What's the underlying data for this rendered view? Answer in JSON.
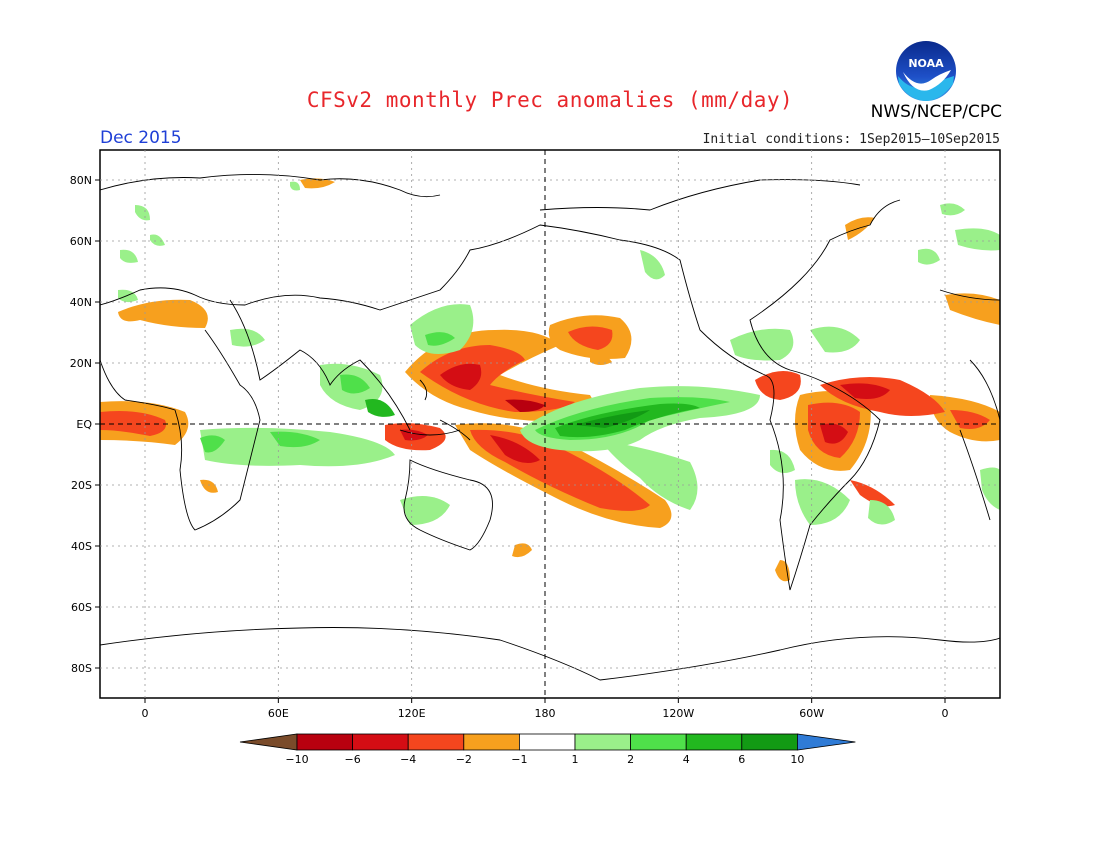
{
  "header": {
    "title": "CFSv2 monthly Prec anomalies (mm/day)",
    "organization": "NWS/NCEP/CPC",
    "logo_text": "NOAA",
    "valid_month": "Dec 2015",
    "initial_conditions": "Initial conditions: 1Sep2015—10Sep2015"
  },
  "map": {
    "projection": "cylindrical equidistant",
    "lat_labels": [
      "80N",
      "60N",
      "40N",
      "20N",
      "EQ",
      "20S",
      "40S",
      "60S",
      "80S"
    ],
    "lon_labels": [
      "0",
      "60E",
      "120E",
      "180",
      "120W",
      "60W",
      "0"
    ],
    "reference_lines": [
      "EQ",
      "180"
    ]
  },
  "colorbar": {
    "tick_labels": [
      "-10",
      "-6",
      "-4",
      "-2",
      "-1",
      "1",
      "2",
      "4",
      "6",
      "10"
    ],
    "colors": [
      "#7a4b2a",
      "#b8000f",
      "#d40d14",
      "#f5461e",
      "#f7a01e",
      "#ffffff",
      "#9af08a",
      "#4fe04a",
      "#22b81f",
      "#129a14",
      "#2f7bd6"
    ]
  },
  "colors": {
    "title_red": "#e8262b",
    "date_blue": "#1f3fd6",
    "dry_strong": "#b8000f",
    "dry": "#f5461e",
    "dry_weak": "#f7a01e",
    "wet_weak": "#9af08a",
    "wet": "#4fe04a",
    "wet_strong": "#129a14"
  }
}
